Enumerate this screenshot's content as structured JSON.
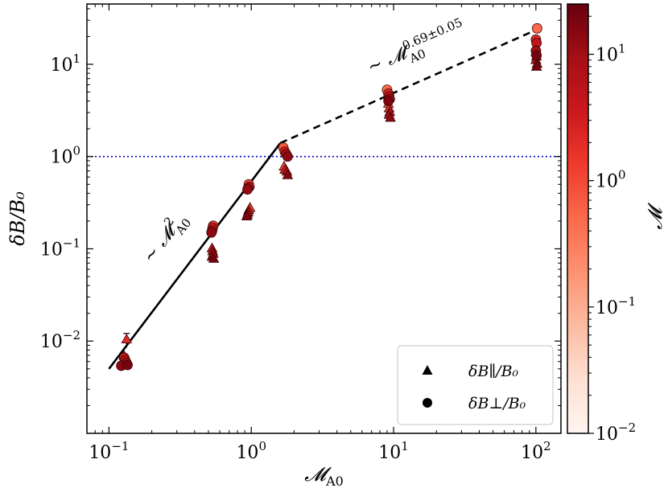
{
  "chart_data": {
    "type": "scatter",
    "xscale": "log",
    "yscale": "log",
    "xlim": [
      0.07,
      150
    ],
    "ylim": [
      0.001,
      45
    ],
    "x_ticks": [
      {
        "base": "10",
        "exp": "−1",
        "value": 0.1
      },
      {
        "base": "10",
        "exp": "0",
        "value": 1
      },
      {
        "base": "10",
        "exp": "1",
        "value": 10
      },
      {
        "base": "10",
        "exp": "2",
        "value": 100
      }
    ],
    "y_ticks": [
      {
        "base": "10",
        "exp": "−2",
        "value": 0.01
      },
      {
        "base": "10",
        "exp": "−1",
        "value": 0.1
      },
      {
        "base": "10",
        "exp": "0",
        "value": 1
      },
      {
        "base": "10",
        "exp": "1",
        "value": 10
      }
    ],
    "xlabel": {
      "main": "𝓜",
      "sub": "A0"
    },
    "ylabel": "δB/B₀",
    "reference_line": {
      "y": 1.0,
      "color": "#0000cc",
      "style": "dotted"
    },
    "fit_lines": [
      {
        "name": "quadratic",
        "x": [
          0.1,
          1.6
        ],
        "y": [
          0.005,
          1.4
        ],
        "style": "solid"
      },
      {
        "name": "power",
        "x": [
          1.6,
          100
        ],
        "y": [
          1.4,
          23.5
        ],
        "style": "dashed"
      }
    ],
    "annotations": [
      {
        "prefix": "~ 𝓜",
        "sub": "A0",
        "sup": "2",
        "angle": -52
      },
      {
        "prefix": "~ 𝓜",
        "sub": "A0",
        "sup": "0.69±0.05",
        "angle": -23
      }
    ],
    "series": [
      {
        "name": "δB∥/B₀",
        "marker": "triangle",
        "points": [
          {
            "x": 0.133,
            "y": 0.0103,
            "m": 2.0,
            "err": 0.0018
          },
          {
            "x": 0.128,
            "y": 0.0068,
            "m": 8.0
          },
          {
            "x": 0.135,
            "y": 0.0061,
            "m": 12.0
          },
          {
            "x": 0.125,
            "y": 0.0056,
            "m": 15.0
          },
          {
            "x": 0.53,
            "y": 0.1,
            "m": 4.0
          },
          {
            "x": 0.535,
            "y": 0.093,
            "m": 7.0
          },
          {
            "x": 0.54,
            "y": 0.087,
            "m": 10.0
          },
          {
            "x": 0.53,
            "y": 0.081,
            "m": 15.0
          },
          {
            "x": 0.545,
            "y": 0.077,
            "m": 20.0
          },
          {
            "x": 0.98,
            "y": 0.275,
            "m": 1.0
          },
          {
            "x": 0.96,
            "y": 0.26,
            "m": 3.0
          },
          {
            "x": 0.95,
            "y": 0.245,
            "m": 6.0
          },
          {
            "x": 0.94,
            "y": 0.232,
            "m": 10.0
          },
          {
            "x": 0.93,
            "y": 0.222,
            "m": 18.0
          },
          {
            "x": 1.7,
            "y": 0.77,
            "m": 0.8
          },
          {
            "x": 1.72,
            "y": 0.71,
            "m": 3.0
          },
          {
            "x": 1.78,
            "y": 0.68,
            "m": 8.0
          },
          {
            "x": 1.8,
            "y": 0.62,
            "m": 15.0
          },
          {
            "x": 9.2,
            "y": 3.7,
            "m": 0.6
          },
          {
            "x": 9.3,
            "y": 3.3,
            "m": 1.5
          },
          {
            "x": 9.4,
            "y": 3.0,
            "m": 4.0
          },
          {
            "x": 9.3,
            "y": 2.8,
            "m": 8.0
          },
          {
            "x": 9.5,
            "y": 2.6,
            "m": 14.0
          },
          {
            "x": 100,
            "y": 13.5,
            "m": 1.0
          },
          {
            "x": 101,
            "y": 12.0,
            "m": 3.0
          },
          {
            "x": 100,
            "y": 11.0,
            "m": 8.0
          },
          {
            "x": 102,
            "y": 10.0,
            "m": 14.0
          },
          {
            "x": 101,
            "y": 9.3,
            "m": 20.0
          }
        ]
      },
      {
        "name": "δB⊥/B₀",
        "marker": "circle",
        "points": [
          {
            "x": 0.128,
            "y": 0.0066,
            "m": 3.0
          },
          {
            "x": 0.13,
            "y": 0.0062,
            "m": 6.0
          },
          {
            "x": 0.133,
            "y": 0.0058,
            "m": 10.0
          },
          {
            "x": 0.122,
            "y": 0.0054,
            "m": 15.0
          },
          {
            "x": 0.135,
            "y": 0.0055,
            "m": 20.0
          },
          {
            "x": 0.54,
            "y": 0.178,
            "m": 1.5
          },
          {
            "x": 0.535,
            "y": 0.168,
            "m": 4.0
          },
          {
            "x": 0.53,
            "y": 0.157,
            "m": 8.0
          },
          {
            "x": 0.525,
            "y": 0.15,
            "m": 14.0
          },
          {
            "x": 0.96,
            "y": 0.5,
            "m": 1.0
          },
          {
            "x": 0.97,
            "y": 0.47,
            "m": 3.0
          },
          {
            "x": 0.95,
            "y": 0.455,
            "m": 7.0
          },
          {
            "x": 0.94,
            "y": 0.44,
            "m": 12.0
          },
          {
            "x": 1.68,
            "y": 1.25,
            "m": 0.7
          },
          {
            "x": 1.72,
            "y": 1.13,
            "m": 3.0
          },
          {
            "x": 1.76,
            "y": 1.06,
            "m": 7.0
          },
          {
            "x": 1.8,
            "y": 1.0,
            "m": 14.0
          },
          {
            "x": 9.0,
            "y": 5.3,
            "m": 0.5
          },
          {
            "x": 9.2,
            "y": 4.8,
            "m": 2.0
          },
          {
            "x": 9.3,
            "y": 4.5,
            "m": 5.0
          },
          {
            "x": 9.4,
            "y": 4.2,
            "m": 10.0
          },
          {
            "x": 9.2,
            "y": 4.0,
            "m": 18.0
          },
          {
            "x": 102,
            "y": 24.5,
            "m": 0.5
          },
          {
            "x": 100,
            "y": 18.5,
            "m": 2.0
          },
          {
            "x": 101,
            "y": 17.0,
            "m": 5.0
          },
          {
            "x": 100,
            "y": 14.0,
            "m": 10.0
          },
          {
            "x": 101,
            "y": 12.5,
            "m": 20.0
          }
        ]
      }
    ],
    "legend": {
      "location": "lower-right",
      "entries": [
        {
          "marker": "triangle",
          "label": "δB∥/B₀"
        },
        {
          "marker": "circle",
          "label": "δB⊥/B₀"
        }
      ]
    },
    "colorbar": {
      "label": "𝓜",
      "scale": "log",
      "range": [
        0.01,
        25
      ],
      "colormap": "Reds",
      "stops": [
        "#fff5f0",
        "#fee0d2",
        "#fcbba1",
        "#fc9272",
        "#fb6a4a",
        "#ef3b2c",
        "#cb181d",
        "#a50f15",
        "#67000d"
      ],
      "ticks": [
        {
          "base": "10",
          "exp": "−2",
          "value": 0.01
        },
        {
          "base": "10",
          "exp": "−1",
          "value": 0.1
        },
        {
          "base": "10",
          "exp": "0",
          "value": 1
        },
        {
          "base": "10",
          "exp": "1",
          "value": 10
        }
      ]
    }
  }
}
